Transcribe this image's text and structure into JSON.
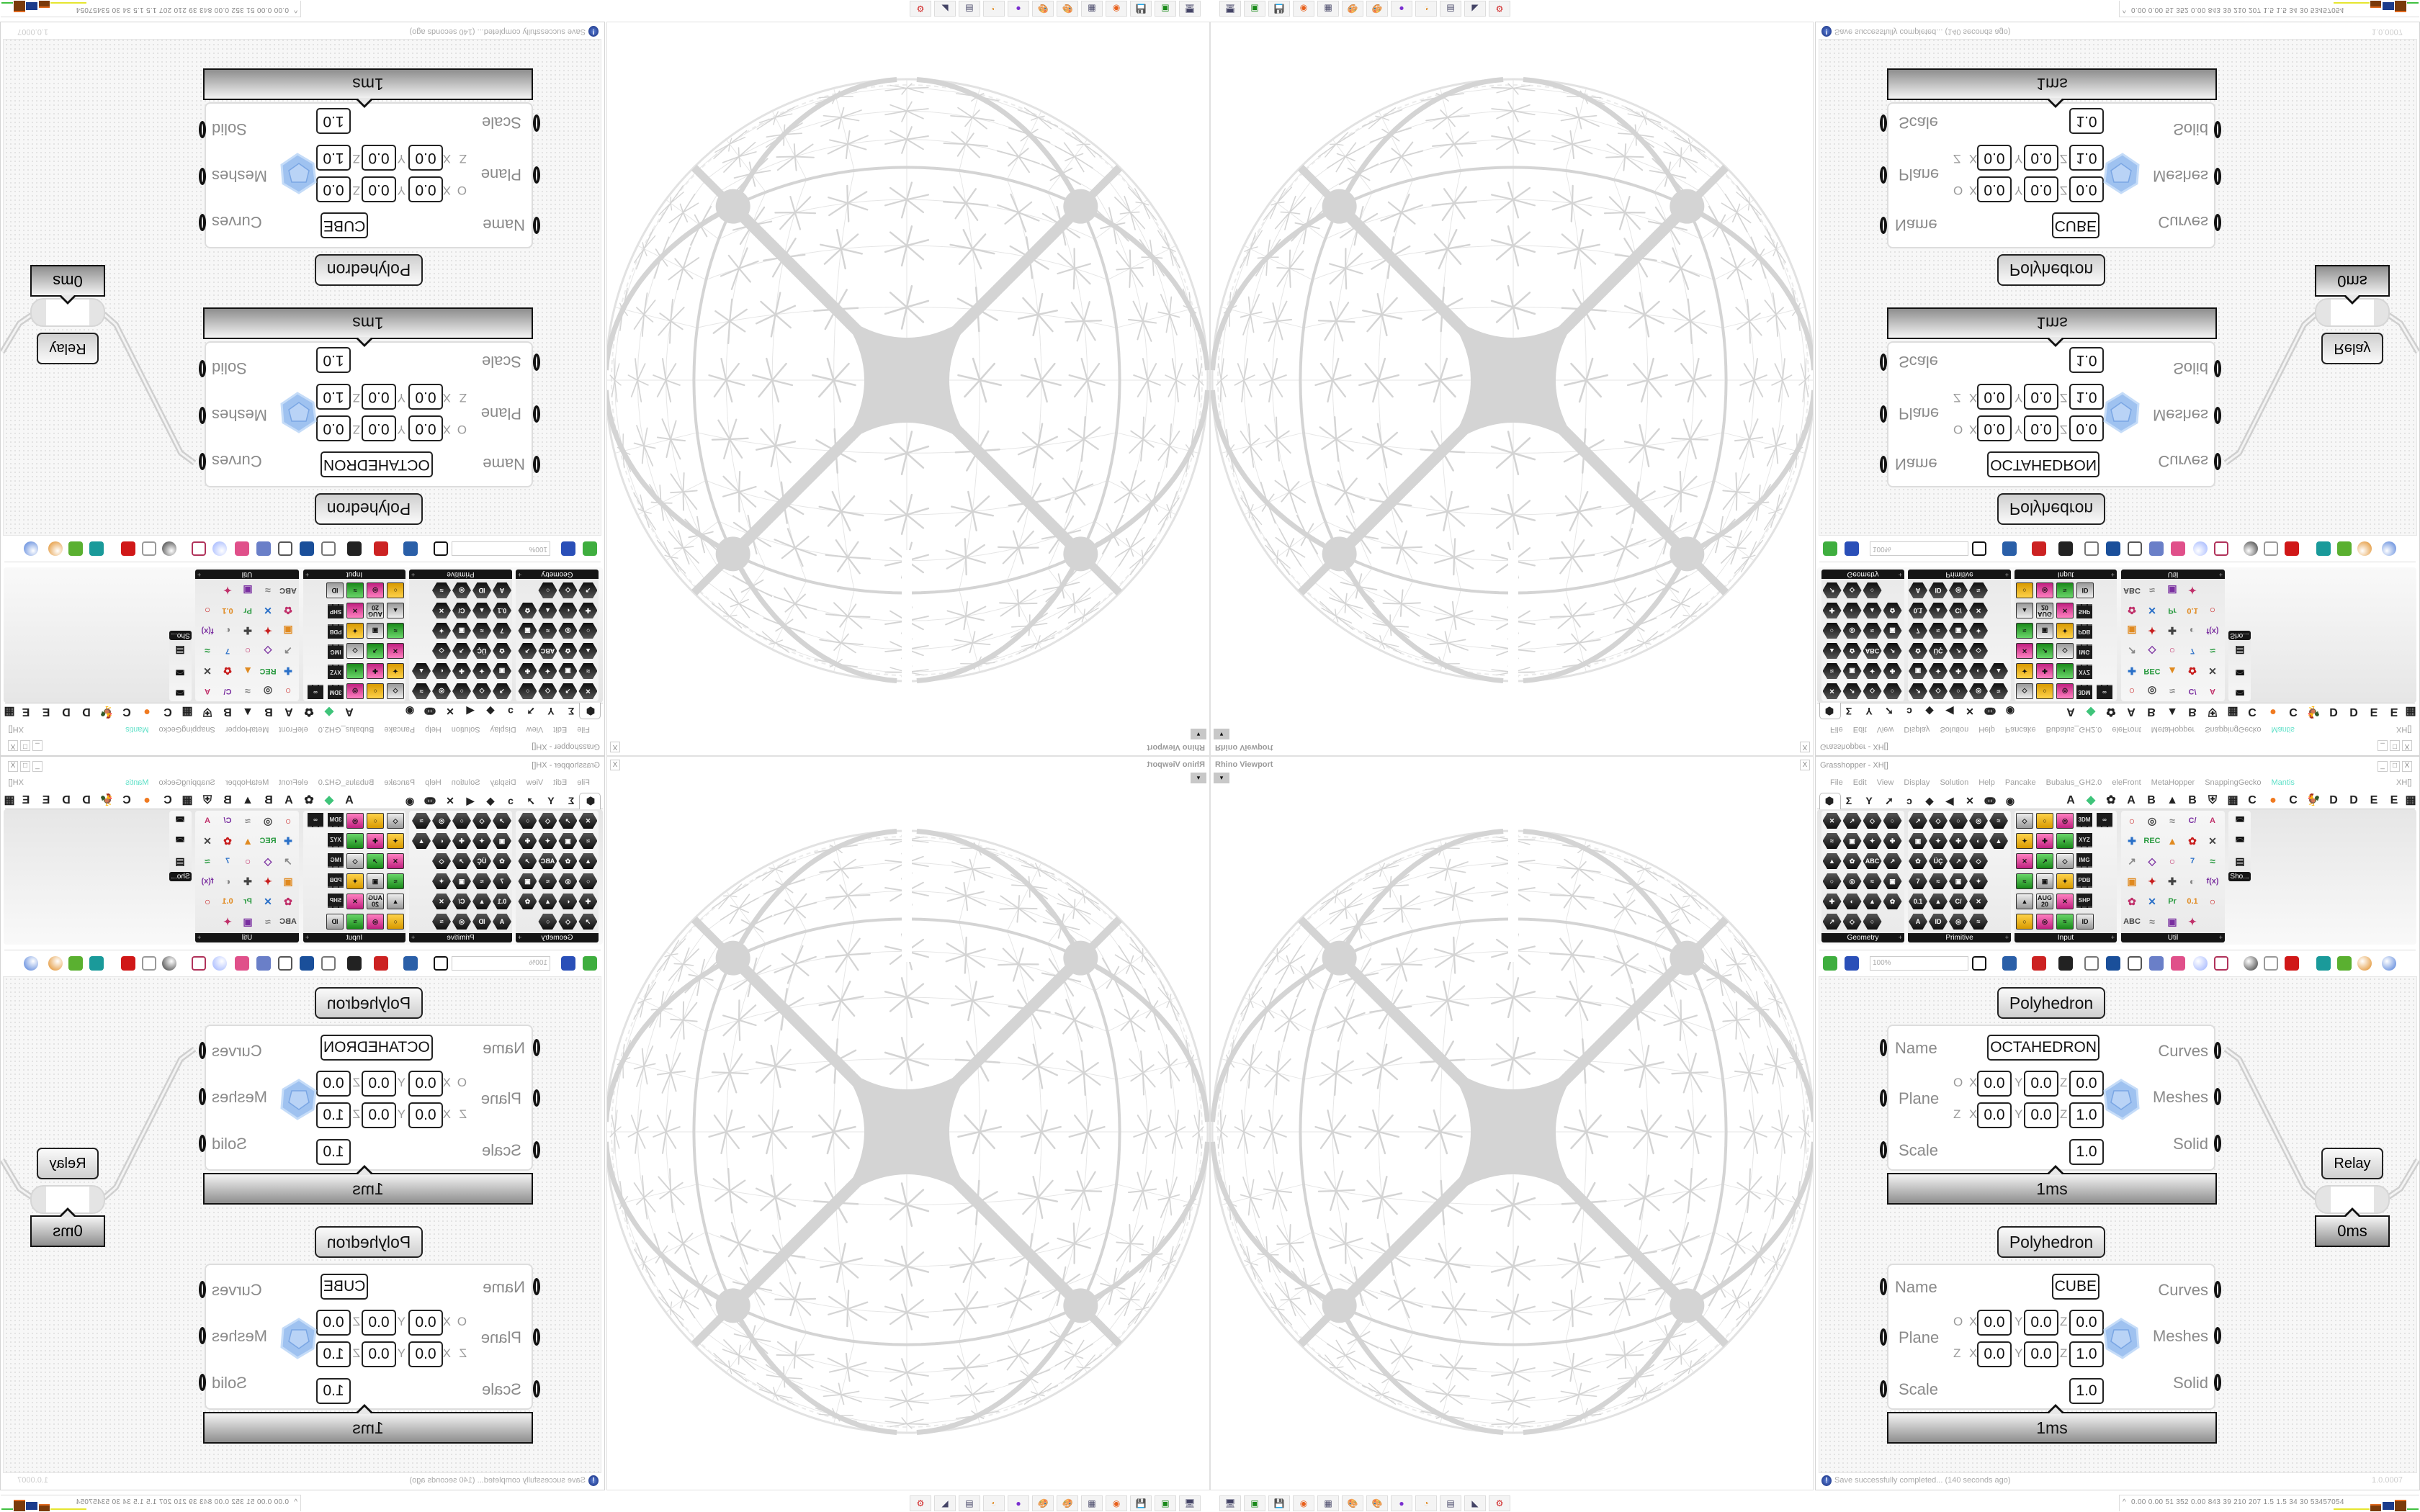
{
  "viewport": {
    "title": "Rhino Viewport",
    "close_label": "X",
    "dropdown_label": "▾"
  },
  "grasshopper": {
    "title": "Grasshopper - XH[]",
    "window_controls": [
      "_",
      "□",
      "X"
    ],
    "menu": [
      "File",
      "Edit",
      "View",
      "Display",
      "Solution",
      "Help",
      "Pancake",
      "Bubalus_GH2.0",
      "eleFront",
      "MetaHopper",
      "SnappingGecko",
      "Mantis"
    ],
    "menu_accent_color": "#5fe0c8",
    "menu_right": "XH[]",
    "tabs": [
      "params-hexagon",
      "Σ",
      "Y",
      "➚",
      "ↄ",
      "◆",
      "◀",
      "✕",
      "ↈ",
      "◉"
    ],
    "tabs_right": [
      "A",
      "◆",
      "✿",
      "A",
      "B",
      "▲",
      "B",
      "⛨",
      "▦",
      "C",
      "●",
      "C",
      "🐓",
      "D",
      "D",
      "E",
      "E",
      "▦"
    ],
    "ribbon_groups": [
      {
        "label": "Geometry",
        "style": "hex",
        "rows": [
          [
            {
              "icon": "vector"
            },
            {
              "icon": "line"
            },
            {
              "icon": "point"
            },
            {
              "icon": "spiral"
            }
          ],
          [
            {
              "icon": "cross"
            },
            {
              "icon": "rectangle"
            },
            {
              "icon": "box-side"
            },
            {
              "icon": "field"
            }
          ],
          [
            {
              "icon": "arrow"
            },
            {
              "icon": "diamond"
            },
            {
              "icon": "text",
              "label": "ABC"
            },
            {
              "icon": "wave"
            }
          ],
          [
            {
              "icon": "circle"
            },
            {
              "icon": "box"
            },
            {
              "icon": "capsule"
            },
            {
              "icon": "cluster"
            }
          ],
          [
            {
              "icon": "lamp"
            },
            {
              "icon": "gem"
            },
            {
              "icon": "map"
            },
            {
              "icon": "swirl"
            }
          ],
          [
            {
              "icon": "rings"
            },
            {
              "icon": "lattice"
            },
            {
              "icon": "horseshoe"
            }
          ]
        ]
      },
      {
        "label": "Primitive",
        "style": "hex",
        "rows": [
          [
            {
              "icon": "drop"
            },
            {
              "icon": "bug"
            },
            {
              "icon": "grid"
            },
            {
              "icon": "angle"
            },
            {
              "icon": "gate"
            }
          ],
          [
            {
              "icon": "net"
            },
            {
              "icon": "ramp"
            },
            {
              "icon": "clock"
            },
            {
              "icon": "tag"
            },
            {
              "icon": "crest"
            }
          ],
          [
            {
              "icon": "scissors"
            },
            {
              "icon": "text",
              "label": "ÜÇ"
            },
            {
              "icon": "hatch"
            },
            {
              "icon": "seal"
            }
          ],
          [
            {
              "icon": "integer",
              "label": "7"
            },
            {
              "icon": "plus"
            },
            {
              "icon": "tree"
            },
            {
              "icon": "leaf"
            }
          ],
          [
            {
              "icon": "number",
              "label": "0.1"
            },
            {
              "icon": "hash"
            },
            {
              "icon": "complex",
              "label": "C/"
            },
            {
              "icon": "page"
            }
          ],
          [
            {
              "icon": "text",
              "label": "A"
            },
            {
              "icon": "guid",
              "label": "ID"
            },
            {
              "icon": "sphere"
            },
            {
              "icon": "dome"
            }
          ]
        ]
      },
      {
        "label": "Input",
        "style": "sq",
        "rows": [
          [
            {
              "icon": "import"
            },
            {
              "icon": "black-box"
            },
            {
              "icon": "color-gem"
            },
            {
              "icon": "chip",
              "label": "3DM"
            },
            {
              "icon": "chip",
              "label": "∞"
            }
          ],
          [
            {
              "icon": "graph-yellow"
            },
            {
              "icon": "gumball"
            },
            {
              "icon": "t-shape"
            },
            {
              "icon": "chip",
              "label": "XYZ"
            }
          ],
          [
            {
              "icon": "toggle"
            },
            {
              "icon": "gradient"
            },
            {
              "icon": "color-wheel"
            },
            {
              "icon": "chip",
              "label": "IMG"
            }
          ],
          [
            {
              "icon": "button"
            },
            {
              "icon": "checker"
            },
            {
              "icon": "graph-mapper"
            },
            {
              "icon": "chip",
              "label": "PDB"
            }
          ],
          [
            {
              "icon": "lightning"
            },
            {
              "icon": "calendar",
              "label": "AUG 20"
            },
            {
              "icon": "target"
            },
            {
              "icon": "chip",
              "label": "SHP"
            }
          ],
          [
            {
              "icon": "value-list"
            },
            {
              "icon": "clock"
            },
            {
              "icon": "color-bars"
            },
            {
              "icon": "tag",
              "label": "ID"
            }
          ]
        ]
      },
      {
        "label": "Util",
        "style": "color",
        "rows": [
          [
            {
              "icon": "cherries"
            },
            {
              "icon": "magnet"
            },
            {
              "icon": "arrow-right"
            },
            {
              "icon": "complex",
              "label": "C/"
            },
            {
              "icon": "text",
              "label": "A"
            }
          ],
          [
            {
              "icon": "play"
            },
            {
              "icon": "record",
              "label": "REC"
            },
            {
              "icon": "search"
            },
            {
              "icon": "hex-spiral"
            },
            {
              "icon": "disc"
            }
          ],
          [
            {
              "icon": "axes"
            },
            {
              "icon": "pen"
            },
            {
              "icon": "stopwatch"
            },
            {
              "icon": "integer",
              "label": "7"
            },
            {
              "icon": "flask"
            }
          ],
          [
            {
              "icon": "tree"
            },
            {
              "icon": "switch"
            },
            {
              "icon": "egg"
            },
            {
              "icon": "key"
            },
            {
              "icon": "function",
              "label": "f(x)"
            }
          ],
          [
            {
              "icon": "ring"
            },
            {
              "icon": "rotate"
            },
            {
              "icon": "premiere",
              "label": "Pr"
            },
            {
              "icon": "number",
              "label": "0.1"
            },
            {
              "icon": "palette"
            }
          ],
          [
            {
              "icon": "text",
              "label": "ABC"
            },
            {
              "icon": "arrow"
            },
            {
              "icon": "gauge"
            },
            {
              "icon": "cross"
            }
          ]
        ]
      }
    ],
    "shortcut_group": {
      "icons": [
        "vr-headset",
        "vr-headset",
        "presentation"
      ],
      "label": "Sho..."
    },
    "toolbar": {
      "icons_left": [
        {
          "icon": "new-file",
          "color": "#3fae3f"
        },
        {
          "icon": "save",
          "color": "#2a4fb8"
        }
      ],
      "zoom": "100%",
      "icons_right": [
        {
          "icon": "zoom-extents",
          "color": "#111111"
        },
        {
          "icon": "preview-eye",
          "color": "#2a5fa8"
        },
        {
          "icon": "sketch-pen",
          "color": "#cc2222"
        },
        {
          "icon": "cylinder",
          "color": "#222222"
        },
        {
          "icon": "at-badge",
          "color": "#777777"
        },
        {
          "icon": "gha",
          "color": "#1a4f9a"
        },
        {
          "icon": "image-window",
          "color": "#555555"
        },
        {
          "icon": "search-s",
          "color": "#6a7fc8"
        },
        {
          "icon": "box-pink",
          "color": "#e0508a"
        },
        {
          "icon": "balloon",
          "color": "#9ab0ff"
        },
        {
          "icon": "cross-curves",
          "color": "#b0325a"
        },
        {
          "icon": "gray-sphere",
          "color": "#333333"
        },
        {
          "icon": "chain",
          "color": "#999999"
        },
        {
          "icon": "red-gem",
          "color": "#d01818"
        },
        {
          "icon": "teal-shape",
          "color": "#1a9a9a"
        },
        {
          "icon": "green-shape",
          "color": "#5ab030"
        },
        {
          "icon": "orange-ball",
          "color": "#e08a20"
        },
        {
          "icon": "blue-ball",
          "color": "#4a7ad8"
        }
      ]
    }
  },
  "components": [
    {
      "title": "Polyhedron",
      "inputs": [
        "Name",
        "Plane",
        "Scale"
      ],
      "outputs": [
        "Curves",
        "Meshes",
        "Solid"
      ],
      "name_value": "OCTAHEDRON",
      "row_labels": [
        "O",
        "Z"
      ],
      "axes": [
        "X",
        "Y",
        "Z"
      ],
      "origin": [
        "0.0",
        "0.0",
        "0.0"
      ],
      "z_axis": [
        "0.0",
        "0.0",
        "1.0"
      ],
      "scale": "1.0",
      "time": "1ms"
    },
    {
      "title": "Polyhedron",
      "inputs": [
        "Name",
        "Plane",
        "Scale"
      ],
      "outputs": [
        "Curves",
        "Meshes",
        "Solid"
      ],
      "name_value": "CUBE",
      "row_labels": [
        "O",
        "Z"
      ],
      "axes": [
        "X",
        "Y",
        "Z"
      ],
      "origin": [
        "0.0",
        "0.0",
        "0.0"
      ],
      "z_axis": [
        "0.0",
        "0.0",
        "1.0"
      ],
      "scale": "1.0",
      "time": "1ms"
    }
  ],
  "relay": {
    "label": "Relay",
    "time": "0ms"
  },
  "status": {
    "message": "Save successfully completed... (140 seconds ago)",
    "version": "1.0.0007",
    "icon": "info-icon"
  },
  "taskbar": {
    "apps": [
      "remote-desktop",
      "terminal",
      "floppy-64",
      "firefox",
      "calculator",
      "paint",
      "paint",
      "purple-chat",
      "blender",
      "document",
      "rhino",
      "red-gear"
    ],
    "stats_arrow": "^",
    "stats": "0.00 0.00  51  352 0.00 843  39  210  207  1.5  1.5  34  30 53457054"
  },
  "colors": {
    "sphere": "#d4d4d4",
    "canvas": "#f7f7f7",
    "accent": "#5fe0c8"
  }
}
